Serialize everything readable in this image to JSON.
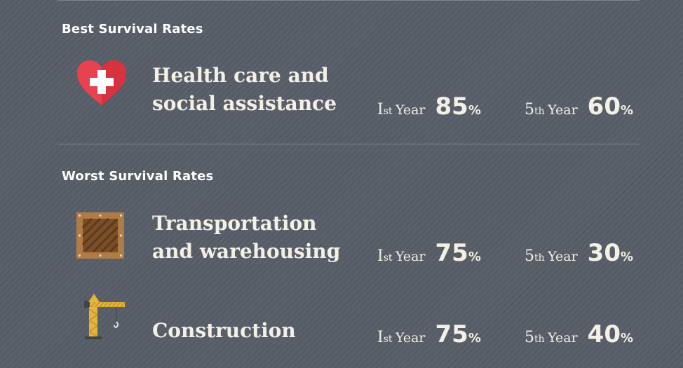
{
  "sections": [
    {
      "title": "Best Survival Rates",
      "rows": [
        {
          "icon": "heart-cross-icon",
          "industry_line1": "Health care and",
          "industry_line2": "social assistance",
          "first": {
            "ord": "I",
            "sup": "st",
            "label": "Year",
            "value": "85",
            "unit": "%"
          },
          "fifth": {
            "ord": "5",
            "sup": "th",
            "label": "Year",
            "value": "60",
            "unit": "%"
          }
        }
      ]
    },
    {
      "title": "Worst Survival Rates",
      "rows": [
        {
          "icon": "wooden-crate-icon",
          "industry_line1": "Transportation",
          "industry_line2": "and warehousing",
          "first": {
            "ord": "I",
            "sup": "st",
            "label": "Year",
            "value": "75",
            "unit": "%"
          },
          "fifth": {
            "ord": "5",
            "sup": "th",
            "label": "Year",
            "value": "30",
            "unit": "%"
          }
        },
        {
          "icon": "construction-crane-icon",
          "industry_line1": "Construction",
          "first": {
            "ord": "I",
            "sup": "st",
            "label": "Year",
            "value": "75",
            "unit": "%"
          },
          "fifth": {
            "ord": "5",
            "sup": "th",
            "label": "Year",
            "value": "40",
            "unit": "%"
          }
        }
      ]
    }
  ],
  "colors": {
    "background": "#5a616a",
    "text": "#f5f0e6",
    "heart": "#e8414f",
    "crate": "#a0703c",
    "crane": "#e3b43a"
  }
}
